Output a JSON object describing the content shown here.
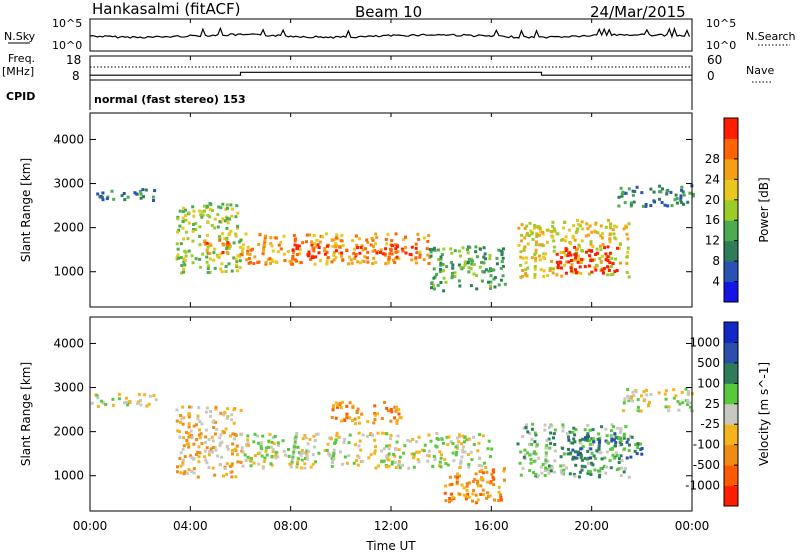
{
  "header": {
    "station": "Hankasalmi (fitACF)",
    "beam": "Beam 10",
    "date": "24/Mar/2015"
  },
  "top_panels": {
    "noise": {
      "left_label": "N.Sky",
      "right_label": "N.Search",
      "left_ticks": [
        "10^5",
        "10^0"
      ],
      "right_ticks": [
        "10^5",
        "10^0"
      ]
    },
    "freq": {
      "left_label_1": "Freq.",
      "left_label_2": "[MHz]",
      "left_ticks": [
        "18",
        "8"
      ],
      "right_label": "Nave",
      "right_ticks": [
        "60",
        "0"
      ],
      "step_values_mhz": [
        {
          "from": 0.0,
          "to": 6.0,
          "value": 10
        },
        {
          "from": 6.0,
          "to": 18.0,
          "value": 11.2
        },
        {
          "from": 18.0,
          "to": 24.0,
          "value": 10
        }
      ]
    },
    "cpid": {
      "label": "CPID",
      "text": "normal (fast stereo) 153"
    }
  },
  "chart_data": [
    {
      "type": "heatmap",
      "panel": "power",
      "ylabel": "Slant Range [km]",
      "ytick_labels": [
        "1000",
        "2000",
        "3000",
        "4000"
      ],
      "ylim": [
        200,
        4600
      ],
      "xlim": [
        0,
        24
      ],
      "colorbar_label": "Power [dB]",
      "colorbar_ticks": [
        "4",
        "8",
        "12",
        "16",
        "20",
        "24",
        "28"
      ],
      "colorbar_colors": [
        "#1414e6",
        "#2a52b4",
        "#2e7d5a",
        "#4caa50",
        "#9ccc28",
        "#e8c81e",
        "#f5a014",
        "#ff6400",
        "#ff1e00"
      ],
      "blobs": [
        {
          "t0": 0.0,
          "t1": 2.6,
          "r0": 2650,
          "r1": 2900,
          "level": 2
        },
        {
          "t0": 3.4,
          "t1": 6.0,
          "r0": 1000,
          "r1": 2600,
          "level": 4
        },
        {
          "t0": 4.5,
          "t1": 5.5,
          "r0": 1400,
          "r1": 1800,
          "level": 7
        },
        {
          "t0": 6.0,
          "t1": 13.5,
          "r0": 1200,
          "r1": 1900,
          "level": 6
        },
        {
          "t0": 8.0,
          "t1": 13.0,
          "r0": 1350,
          "r1": 1650,
          "level": 8
        },
        {
          "t0": 13.5,
          "t1": 16.5,
          "r0": 600,
          "r1": 1600,
          "level": 3
        },
        {
          "t0": 17.0,
          "t1": 21.5,
          "r0": 900,
          "r1": 2200,
          "level": 5
        },
        {
          "t0": 18.5,
          "t1": 21.0,
          "r0": 1000,
          "r1": 1600,
          "level": 9
        },
        {
          "t0": 21.0,
          "t1": 24.0,
          "r0": 2500,
          "r1": 3000,
          "level": 2
        }
      ]
    },
    {
      "type": "heatmap",
      "panel": "velocity",
      "ylabel": "Slant Range [km]",
      "ytick_labels": [
        "1000",
        "2000",
        "3000",
        "4000"
      ],
      "ylim": [
        200,
        4600
      ],
      "xlim": [
        0,
        24
      ],
      "colorbar_label": "Velocity [m s^-1]",
      "colorbar_ticks": [
        "1000",
        "500",
        "100",
        "25",
        "-25",
        "-100",
        "-500",
        "-1000"
      ],
      "colorbar_colors": [
        "#1428c8",
        "#2a4eaa",
        "#2e7d5a",
        "#5ac83c",
        "#c8c8c0",
        "#f5b41e",
        "#f08c14",
        "#ff5a00",
        "#ff1e00"
      ],
      "blobs": [
        {
          "t0": 0.0,
          "t1": 2.6,
          "r0": 2600,
          "r1": 2900,
          "level": 4
        },
        {
          "t0": 3.4,
          "t1": 6.0,
          "r0": 1000,
          "r1": 2600,
          "level": 5
        },
        {
          "t0": 6.0,
          "t1": 16.0,
          "r0": 1200,
          "r1": 2000,
          "level": 4
        },
        {
          "t0": 9.5,
          "t1": 12.5,
          "r0": 2200,
          "r1": 2700,
          "level": 6
        },
        {
          "t0": 14.0,
          "t1": 16.5,
          "r0": 400,
          "r1": 1200,
          "level": 6
        },
        {
          "t0": 17.0,
          "t1": 21.5,
          "r0": 1000,
          "r1": 2200,
          "level": 3
        },
        {
          "t0": 19.0,
          "t1": 22.0,
          "r0": 1400,
          "r1": 2000,
          "level": 2
        },
        {
          "t0": 21.0,
          "t1": 24.0,
          "r0": 2500,
          "r1": 3000,
          "level": 4
        }
      ]
    }
  ],
  "xaxis": {
    "label": "Time UT",
    "ticks": [
      "00:00",
      "04:00",
      "08:00",
      "12:00",
      "16:00",
      "20:00",
      "00:00"
    ]
  }
}
